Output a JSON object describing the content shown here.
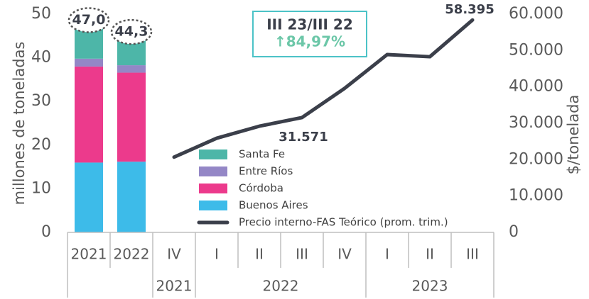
{
  "chart_data": {
    "type": "bar_line",
    "ylabel": "millones de toneladas",
    "y2label": "$/tonelada",
    "categories": [
      "2021",
      "2022",
      "IV",
      "I",
      "II",
      "III",
      "IV",
      "I",
      "II",
      "III"
    ],
    "groups": [
      {
        "label": "2021",
        "span": [
          2,
          2
        ]
      },
      {
        "label": "2022",
        "span": [
          3,
          6
        ]
      },
      {
        "label": "2023",
        "span": [
          7,
          9
        ]
      }
    ],
    "ylim": [
      0,
      50
    ],
    "yticks": [
      0,
      10,
      20,
      30,
      40,
      50
    ],
    "y2lim": [
      0,
      60000
    ],
    "y2ticks": [
      {
        "value": 0,
        "label": "0"
      },
      {
        "value": 10000,
        "label": "10.000"
      },
      {
        "value": 20000,
        "label": "20.000"
      },
      {
        "value": 30000,
        "label": "30.000"
      },
      {
        "value": 40000,
        "label": "40.000"
      },
      {
        "value": 50000,
        "label": "50.000"
      },
      {
        "value": 60000,
        "label": "60.000"
      }
    ],
    "series": [
      {
        "name": "Buenos Aires",
        "color": "#3dbbe9",
        "values": [
          16.0,
          16.2,
          null,
          null,
          null,
          null,
          null,
          null,
          null,
          null
        ]
      },
      {
        "name": "Córdoba",
        "color": "#ec3a8c",
        "values": [
          22.0,
          20.4,
          null,
          null,
          null,
          null,
          null,
          null,
          null,
          null
        ]
      },
      {
        "name": "Entre Ríos",
        "color": "#9487c6",
        "values": [
          1.8,
          1.7,
          null,
          null,
          null,
          null,
          null,
          null,
          null,
          null
        ]
      },
      {
        "name": "Santa Fe",
        "color": "#4db6a8",
        "values": [
          7.2,
          6.0,
          null,
          null,
          null,
          null,
          null,
          null,
          null,
          null
        ]
      },
      {
        "name": "Precio interno-FAS Teórico (prom. trim.)",
        "color": "#3b3f4a",
        "axis": "y2",
        "type": "line",
        "values": [
          null,
          null,
          20700,
          25900,
          29200,
          31571,
          39600,
          48900,
          48300,
          58395
        ],
        "value_labels": [
          null,
          null,
          null,
          null,
          null,
          "31.571",
          null,
          null,
          null,
          "58.395"
        ]
      }
    ],
    "totals": [
      47.0,
      44.3
    ],
    "total_labels": [
      "47,0",
      "44,3"
    ],
    "annotation": {
      "title": "III 23/III 22",
      "text": "↑84,97%"
    }
  }
}
